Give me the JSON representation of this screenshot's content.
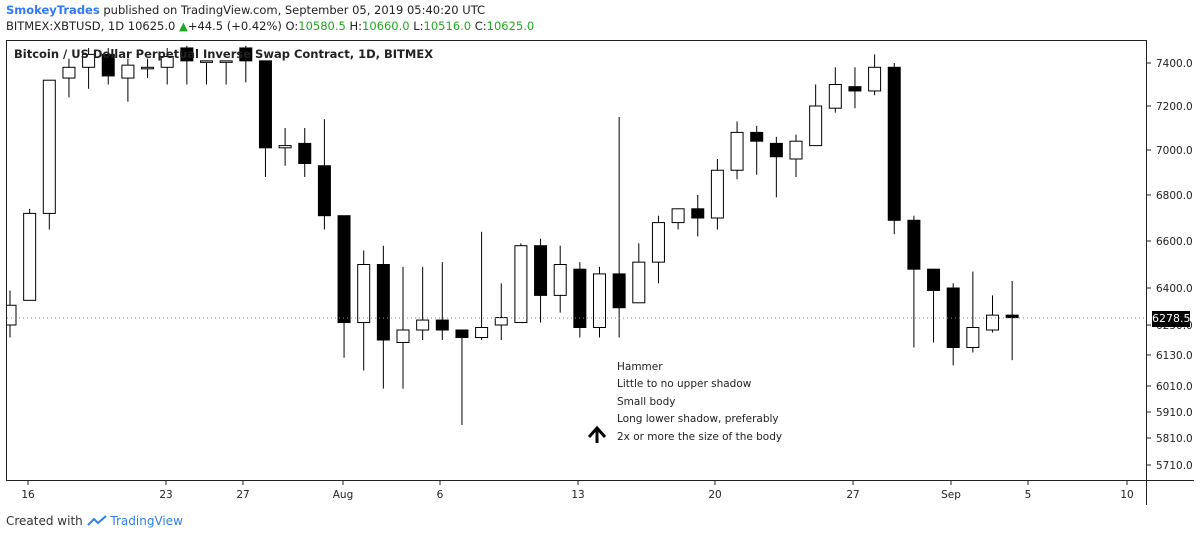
{
  "header": {
    "author": "SmokeyTrades",
    "published": "published on TradingView.com, September 05, 2019 05:40:20 UTC",
    "symbol": "BITMEX:XBTUSD, 1D",
    "last": "10625.0",
    "arrow": "▲",
    "change": "+44.5 (+0.42%)",
    "o_label": "O:",
    "o_value": "10580.5",
    "h_label": "H:",
    "h_value": "10660.0",
    "l_label": "L:",
    "l_value": "10516.0",
    "c_label": "C:",
    "c_value": "10625.0"
  },
  "footer": {
    "prefix": "Created with",
    "brand": "TradingView"
  },
  "chart_data": {
    "type": "candlestick",
    "title": "Bitcoin / US Dollar Perpetual Inverse Swap Contract, 1D, BITMEX",
    "last_price_label": "6278.5",
    "y_ticks": [
      "7400.0",
      "7200.0",
      "7000.0",
      "6800.0",
      "6600.0",
      "6400.0",
      "6250.0",
      "6130.0",
      "6010.0",
      "5910.0",
      "5810.0",
      "5710.0"
    ],
    "x_ticks": [
      "16",
      "23",
      "27",
      "Aug",
      "6",
      "13",
      "20",
      "27",
      "Sep",
      "5",
      "10"
    ],
    "annotation": {
      "lines": [
        "Hammer",
        "Little to no upper shadow",
        "Small body",
        "Long lower shadow, preferably",
        "2x or more the size of the body"
      ],
      "arrow": "up"
    },
    "candles": [
      {
        "o": 6250,
        "h": 6390,
        "l": 6200,
        "c": 6330
      },
      {
        "o": 6350,
        "h": 6740,
        "l": 6350,
        "c": 6720
      },
      {
        "o": 6720,
        "h": 7320,
        "l": 6650,
        "c": 7320
      },
      {
        "o": 7330,
        "h": 7420,
        "l": 7240,
        "c": 7380
      },
      {
        "o": 7380,
        "h": 7470,
        "l": 7280,
        "c": 7440
      },
      {
        "o": 7440,
        "h": 7470,
        "l": 7300,
        "c": 7340
      },
      {
        "o": 7330,
        "h": 7420,
        "l": 7220,
        "c": 7390
      },
      {
        "o": 7380,
        "h": 7420,
        "l": 7330,
        "c": 7380
      },
      {
        "o": 7380,
        "h": 7470,
        "l": 7300,
        "c": 7430
      },
      {
        "o": 7470,
        "h": 7480,
        "l": 7300,
        "c": 7410
      },
      {
        "o": 7410,
        "h": 7400,
        "l": 7300,
        "c": 7410
      },
      {
        "o": 7410,
        "h": 7400,
        "l": 7300,
        "c": 7410
      },
      {
        "o": 7470,
        "h": 7480,
        "l": 7310,
        "c": 7410
      },
      {
        "o": 7410,
        "h": 7410,
        "l": 6880,
        "c": 7010
      },
      {
        "o": 7010,
        "h": 7100,
        "l": 6930,
        "c": 7020
      },
      {
        "o": 7030,
        "h": 7100,
        "l": 6880,
        "c": 6940
      },
      {
        "o": 6930,
        "h": 7140,
        "l": 6650,
        "c": 6710
      },
      {
        "o": 6710,
        "h": 6710,
        "l": 6120,
        "c": 6260
      },
      {
        "o": 6260,
        "h": 6560,
        "l": 6070,
        "c": 6500
      },
      {
        "o": 6500,
        "h": 6580,
        "l": 6000,
        "c": 6190
      },
      {
        "o": 6180,
        "h": 6490,
        "l": 6000,
        "c": 6230
      },
      {
        "o": 6230,
        "h": 6490,
        "l": 6190,
        "c": 6270
      },
      {
        "o": 6270,
        "h": 6510,
        "l": 6190,
        "c": 6230
      },
      {
        "o": 6230,
        "h": 6230,
        "l": 5860,
        "c": 6200
      },
      {
        "o": 6200,
        "h": 6640,
        "l": 6190,
        "c": 6240
      },
      {
        "o": 6250,
        "h": 6420,
        "l": 6190,
        "c": 6280
      },
      {
        "o": 6260,
        "h": 6590,
        "l": 6260,
        "c": 6580
      },
      {
        "o": 6580,
        "h": 6610,
        "l": 6260,
        "c": 6370
      },
      {
        "o": 6370,
        "h": 6580,
        "l": 6300,
        "c": 6500
      },
      {
        "o": 6480,
        "h": 6510,
        "l": 6200,
        "c": 6240
      },
      {
        "o": 6240,
        "h": 6490,
        "l": 6200,
        "c": 6460
      },
      {
        "o": 6460,
        "h": 7150,
        "l": 6200,
        "c": 6320
      },
      {
        "o": 6340,
        "h": 6590,
        "l": 6340,
        "c": 6510
      },
      {
        "o": 6510,
        "h": 6710,
        "l": 6420,
        "c": 6680
      },
      {
        "o": 6680,
        "h": 6740,
        "l": 6650,
        "c": 6740
      },
      {
        "o": 6740,
        "h": 6800,
        "l": 6620,
        "c": 6700
      },
      {
        "o": 6700,
        "h": 6960,
        "l": 6650,
        "c": 6910
      },
      {
        "o": 6910,
        "h": 7130,
        "l": 6870,
        "c": 7080
      },
      {
        "o": 7080,
        "h": 7110,
        "l": 6890,
        "c": 7040
      },
      {
        "o": 7030,
        "h": 7060,
        "l": 6790,
        "c": 6970
      },
      {
        "o": 6960,
        "h": 7070,
        "l": 6880,
        "c": 7040
      },
      {
        "o": 7020,
        "h": 7300,
        "l": 7020,
        "c": 7200
      },
      {
        "o": 7190,
        "h": 7380,
        "l": 7170,
        "c": 7300
      },
      {
        "o": 7290,
        "h": 7380,
        "l": 7190,
        "c": 7270
      },
      {
        "o": 7270,
        "h": 7440,
        "l": 7250,
        "c": 7380
      },
      {
        "o": 7380,
        "h": 7400,
        "l": 6630,
        "c": 6690
      },
      {
        "o": 6690,
        "h": 6710,
        "l": 6160,
        "c": 6480
      },
      {
        "o": 6480,
        "h": 6480,
        "l": 6180,
        "c": 6390
      },
      {
        "o": 6400,
        "h": 6420,
        "l": 6090,
        "c": 6160
      },
      {
        "o": 6160,
        "h": 6470,
        "l": 6140,
        "c": 6240
      },
      {
        "o": 6230,
        "h": 6370,
        "l": 6220,
        "c": 6290
      },
      {
        "o": 6290,
        "h": 6430,
        "l": 6110,
        "c": 6280
      }
    ]
  }
}
